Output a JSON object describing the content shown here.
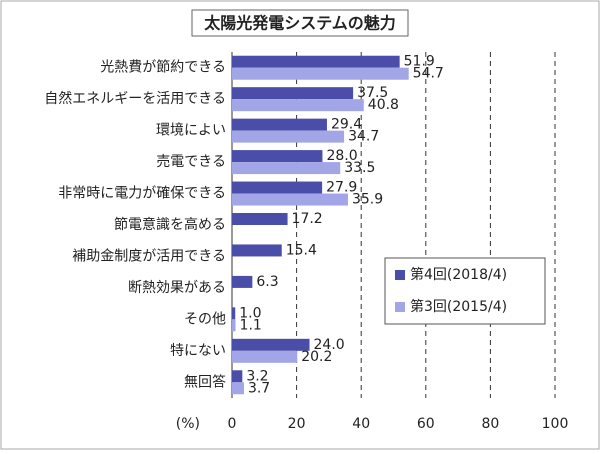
{
  "chart_data": {
    "type": "hbar",
    "title": "太陽光発電システムの魅力",
    "categories": [
      "光熱費が節約できる",
      "自然エネルギーを活用できる",
      "環境によい",
      "売電できる",
      "非常時に電力が確保できる",
      "節電意識を高める",
      "補助金制度が活用できる",
      "断熱効果がある",
      "その他",
      "特にない",
      "無回答"
    ],
    "series": [
      {
        "name": "第4回(2018/4)",
        "color": "#4a4ea8",
        "values": [
          51.9,
          37.5,
          29.4,
          28.0,
          27.9,
          17.2,
          15.4,
          6.3,
          1.0,
          24.0,
          3.2
        ],
        "value_labels": [
          "51.9",
          "37.5",
          "29.4",
          "28.0",
          "27.9",
          "17.2",
          "15.4",
          "6.3",
          "1.0",
          "24.0",
          "3.2"
        ]
      },
      {
        "name": "第3回(2015/4)",
        "color": "#a3a6e6",
        "values": [
          54.7,
          40.8,
          34.7,
          33.5,
          35.9,
          null,
          null,
          null,
          1.1,
          20.2,
          3.7
        ],
        "value_labels": [
          "54.7",
          "40.8",
          "34.7",
          "33.5",
          "35.9",
          null,
          null,
          null,
          "1.1",
          "20.2",
          "3.7"
        ]
      }
    ],
    "xlabel": "(%)",
    "xlim": [
      0,
      100
    ],
    "xticks": [
      0,
      20,
      40,
      60,
      80,
      100
    ],
    "grid": true,
    "legend": "right"
  }
}
